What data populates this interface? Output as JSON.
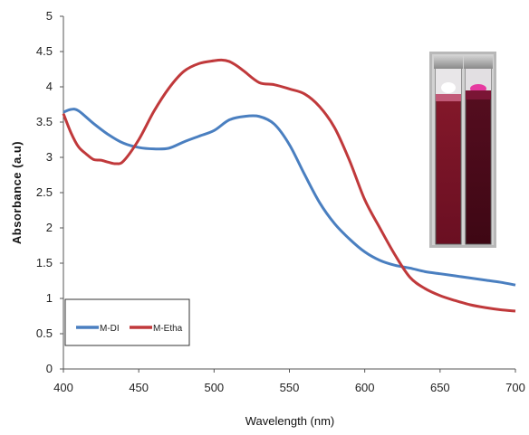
{
  "chart_data": {
    "type": "line",
    "title": "",
    "xlabel": "Wavelength (nm)",
    "ylabel": "Absorbance (a.u)",
    "xlim": [
      400,
      700
    ],
    "ylim": [
      0,
      5
    ],
    "x_ticks": [
      "400",
      "450",
      "500",
      "550",
      "600",
      "650",
      "700"
    ],
    "y_ticks": [
      "0",
      "0.5",
      "1",
      "1.5",
      "2",
      "2.5",
      "3",
      "3.5",
      "4",
      "4.5",
      "5"
    ],
    "grid": false,
    "legend_position": "bottom-left",
    "series": [
      {
        "name": "M-DI",
        "color": "#4a7fc0",
        "x": [
          400,
          405,
          410,
          420,
          430,
          440,
          450,
          460,
          470,
          480,
          490,
          500,
          510,
          520,
          530,
          540,
          550,
          560,
          570,
          580,
          590,
          600,
          610,
          620,
          630,
          640,
          650,
          660,
          670,
          680,
          690,
          700
        ],
        "y": [
          3.64,
          3.68,
          3.66,
          3.48,
          3.32,
          3.2,
          3.14,
          3.12,
          3.13,
          3.22,
          3.3,
          3.38,
          3.53,
          3.58,
          3.58,
          3.47,
          3.18,
          2.76,
          2.36,
          2.06,
          1.84,
          1.66,
          1.54,
          1.47,
          1.43,
          1.38,
          1.35,
          1.32,
          1.29,
          1.26,
          1.23,
          1.19
        ]
      },
      {
        "name": "M-Etha",
        "color": "#c0393b",
        "x": [
          400,
          405,
          410,
          415,
          420,
          425,
          430,
          435,
          440,
          450,
          460,
          470,
          480,
          490,
          500,
          505,
          510,
          515,
          520,
          530,
          540,
          550,
          560,
          570,
          580,
          590,
          600,
          610,
          620,
          630,
          640,
          650,
          660,
          670,
          680,
          690,
          700
        ],
        "y": [
          3.62,
          3.35,
          3.15,
          3.05,
          2.97,
          2.96,
          2.93,
          2.91,
          2.95,
          3.25,
          3.65,
          3.98,
          4.22,
          4.33,
          4.37,
          4.38,
          4.36,
          4.3,
          4.22,
          4.06,
          4.03,
          3.97,
          3.9,
          3.72,
          3.42,
          2.95,
          2.4,
          2.0,
          1.62,
          1.3,
          1.14,
          1.04,
          0.97,
          0.91,
          0.87,
          0.84,
          0.82
        ]
      }
    ]
  }
}
